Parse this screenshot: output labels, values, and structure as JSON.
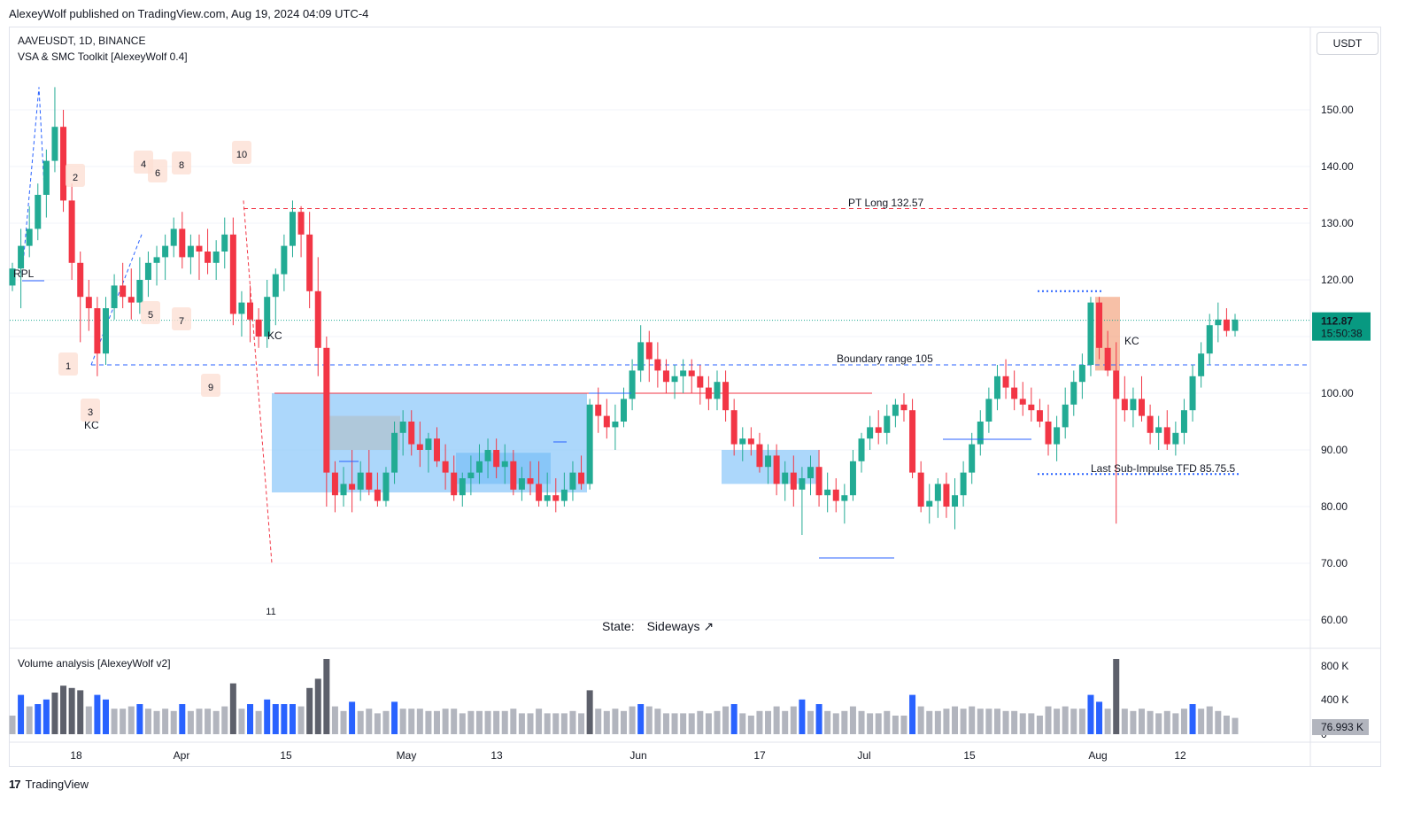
{
  "header": {
    "published": "AlexeyWolf published on TradingView.com, Aug 19, 2024 04:09 UTC-4"
  },
  "legend": {
    "symbol": "AAVEUSDT, 1D, BINANCE",
    "indicator": "VSA & SMC Toolkit [AlexeyWolf 0.4]",
    "volume_indicator": "Volume analysis [AlexeyWolf v2]"
  },
  "currency_button": "USDT",
  "state": {
    "label": "State:",
    "value": "Sideways ↗"
  },
  "footer": {
    "brand": "TradingView"
  },
  "last_price": {
    "value": "112.87",
    "countdown": "15:50:38"
  },
  "volume_readout": "76.993 K",
  "colors": {
    "up": "#22ab94",
    "down": "#f23645",
    "blue": "#2962ff",
    "zone": "#90caf9",
    "vol_gray": "#b2b5be",
    "vol_dark": "#5d606b",
    "vol_blue": "#2962ff"
  },
  "annotations": {
    "pt_long": "PT Long 132.57",
    "boundary": "Boundary range 105",
    "last_sub": "Last Sub-Impulse TFD 85.75.5",
    "kc_1": "KC",
    "kc_2": "KC",
    "kc_3": "KC",
    "rpl": "RPL",
    "counts": [
      "1",
      "2",
      "3",
      "4",
      "5",
      "6",
      "7",
      "8",
      "9",
      "10",
      "11"
    ]
  },
  "chart_data": {
    "type": "candlestick",
    "price_axis": {
      "ticks": [
        "150.00",
        "140.00",
        "130.00",
        "120.00",
        "110.00",
        "100.00",
        "90.00",
        "80.00",
        "70.00",
        "60.00"
      ],
      "range": [
        57,
        162
      ]
    },
    "volume_axis": {
      "ticks": [
        "800 K",
        "400 K",
        "0"
      ]
    },
    "time_axis": {
      "labels": [
        "18",
        "Apr",
        "15",
        "May",
        "13",
        "Jun",
        "17",
        "Jul",
        "15",
        "Aug",
        "12"
      ]
    },
    "levels": {
      "pt_long": 132.57,
      "boundary": 105,
      "last_sub": 85.75,
      "last": 112.87
    },
    "ohlc": [
      [
        119,
        123,
        118,
        122
      ],
      [
        122,
        129,
        115,
        126
      ],
      [
        126,
        133,
        124,
        129
      ],
      [
        129,
        137,
        127,
        135
      ],
      [
        135,
        143,
        131,
        141
      ],
      [
        141,
        154,
        139,
        147
      ],
      [
        147,
        150,
        132,
        134
      ],
      [
        134,
        137,
        120,
        123
      ],
      [
        123,
        125,
        109,
        117
      ],
      [
        117,
        120,
        111,
        115
      ],
      [
        115,
        117,
        103,
        107
      ],
      [
        107,
        117,
        105,
        115
      ],
      [
        115,
        121,
        113,
        119
      ],
      [
        119,
        123,
        115,
        117
      ],
      [
        117,
        122,
        113,
        116
      ],
      [
        116,
        124,
        114,
        120
      ],
      [
        120,
        125,
        117,
        123
      ],
      [
        123,
        126,
        119,
        124
      ],
      [
        124,
        128,
        120,
        126
      ],
      [
        126,
        131,
        124,
        129
      ],
      [
        129,
        132,
        122,
        124
      ],
      [
        124,
        128,
        121,
        126
      ],
      [
        126,
        128,
        120,
        125
      ],
      [
        125,
        129,
        121,
        123
      ],
      [
        123,
        127,
        120,
        125
      ],
      [
        125,
        131,
        122,
        128
      ],
      [
        128,
        131,
        112,
        114
      ],
      [
        114,
        118,
        110,
        116
      ],
      [
        116,
        119,
        109,
        113
      ],
      [
        113,
        115,
        108,
        110
      ],
      [
        110,
        120,
        108,
        117
      ],
      [
        117,
        122,
        112,
        121
      ],
      [
        121,
        128,
        118,
        126
      ],
      [
        126,
        134,
        124,
        132
      ],
      [
        132,
        133,
        124,
        128
      ],
      [
        128,
        132,
        115,
        118
      ],
      [
        118,
        124,
        103,
        108
      ],
      [
        108,
        110,
        80,
        86
      ],
      [
        86,
        88,
        79,
        82
      ],
      [
        82,
        87,
        80,
        84
      ],
      [
        84,
        90,
        79,
        83
      ],
      [
        83,
        88,
        81,
        86
      ],
      [
        86,
        90,
        82,
        83
      ],
      [
        83,
        86,
        80,
        81
      ],
      [
        81,
        87,
        80,
        86
      ],
      [
        86,
        95,
        84,
        93
      ],
      [
        93,
        97,
        89,
        95
      ],
      [
        95,
        97,
        89,
        91
      ],
      [
        91,
        95,
        87,
        90
      ],
      [
        90,
        93,
        86,
        92
      ],
      [
        92,
        94,
        87,
        88
      ],
      [
        88,
        91,
        83,
        86
      ],
      [
        86,
        89,
        81,
        82
      ],
      [
        82,
        86,
        80,
        85
      ],
      [
        85,
        89,
        82,
        86
      ],
      [
        86,
        91,
        84,
        88
      ],
      [
        88,
        92,
        85,
        90
      ],
      [
        90,
        92,
        85,
        87
      ],
      [
        87,
        91,
        84,
        88
      ],
      [
        88,
        90,
        82,
        83
      ],
      [
        83,
        87,
        81,
        85
      ],
      [
        85,
        88,
        82,
        84
      ],
      [
        84,
        88,
        80,
        81
      ],
      [
        81,
        86,
        80,
        82
      ],
      [
        82,
        85,
        79,
        81
      ],
      [
        81,
        86,
        80,
        83
      ],
      [
        83,
        88,
        81,
        86
      ],
      [
        86,
        89,
        83,
        84
      ],
      [
        84,
        99,
        83,
        98
      ],
      [
        98,
        101,
        93,
        96
      ],
      [
        96,
        99,
        92,
        94
      ],
      [
        94,
        98,
        90,
        95
      ],
      [
        95,
        101,
        94,
        99
      ],
      [
        99,
        106,
        97,
        104
      ],
      [
        104,
        112,
        102,
        109
      ],
      [
        109,
        111,
        102,
        106
      ],
      [
        106,
        109,
        101,
        104
      ],
      [
        104,
        106,
        100,
        102
      ],
      [
        102,
        105,
        99,
        103
      ],
      [
        103,
        106,
        100,
        104
      ],
      [
        104,
        106,
        100,
        103
      ],
      [
        103,
        105,
        98,
        101
      ],
      [
        101,
        103,
        97,
        99
      ],
      [
        99,
        104,
        97,
        102
      ],
      [
        102,
        104,
        95,
        97
      ],
      [
        97,
        99,
        89,
        91
      ],
      [
        91,
        94,
        88,
        92
      ],
      [
        92,
        94,
        89,
        91
      ],
      [
        91,
        93,
        86,
        87
      ],
      [
        87,
        91,
        84,
        89
      ],
      [
        89,
        91,
        82,
        84
      ],
      [
        84,
        88,
        81,
        86
      ],
      [
        86,
        89,
        80,
        83
      ],
      [
        83,
        87,
        75,
        85
      ],
      [
        85,
        89,
        82,
        87
      ],
      [
        87,
        90,
        80,
        82
      ],
      [
        82,
        86,
        79,
        83
      ],
      [
        83,
        85,
        79,
        81
      ],
      [
        81,
        84,
        77,
        82
      ],
      [
        82,
        90,
        81,
        88
      ],
      [
        88,
        93,
        86,
        92
      ],
      [
        92,
        96,
        90,
        94
      ],
      [
        94,
        97,
        91,
        93
      ],
      [
        93,
        98,
        91,
        96
      ],
      [
        96,
        99,
        94,
        98
      ],
      [
        98,
        100,
        95,
        97
      ],
      [
        97,
        99,
        85,
        86
      ],
      [
        86,
        88,
        79,
        80
      ],
      [
        80,
        84,
        77,
        81
      ],
      [
        81,
        85,
        78,
        84
      ],
      [
        84,
        86,
        78,
        80
      ],
      [
        80,
        85,
        76,
        82
      ],
      [
        82,
        88,
        80,
        86
      ],
      [
        86,
        93,
        84,
        91
      ],
      [
        91,
        97,
        89,
        95
      ],
      [
        95,
        101,
        93,
        99
      ],
      [
        99,
        105,
        97,
        103
      ],
      [
        103,
        106,
        99,
        101
      ],
      [
        101,
        104,
        97,
        99
      ],
      [
        99,
        102,
        96,
        98
      ],
      [
        98,
        101,
        95,
        97
      ],
      [
        97,
        99,
        94,
        95
      ],
      [
        95,
        98,
        89,
        91
      ],
      [
        91,
        96,
        88,
        94
      ],
      [
        94,
        101,
        92,
        98
      ],
      [
        98,
        104,
        96,
        102
      ],
      [
        102,
        107,
        99,
        105
      ],
      [
        105,
        117,
        103,
        116
      ],
      [
        116,
        117,
        106,
        108
      ],
      [
        108,
        111,
        103,
        104
      ],
      [
        104,
        109,
        77,
        99
      ],
      [
        99,
        103,
        95,
        97
      ],
      [
        97,
        101,
        94,
        99
      ],
      [
        99,
        103,
        95,
        96
      ],
      [
        96,
        98,
        91,
        93
      ],
      [
        93,
        96,
        90,
        94
      ],
      [
        94,
        97,
        90,
        91
      ],
      [
        91,
        95,
        89,
        93
      ],
      [
        93,
        99,
        91,
        97
      ],
      [
        97,
        105,
        95,
        103
      ],
      [
        103,
        109,
        101,
        107
      ],
      [
        107,
        114,
        105,
        112
      ],
      [
        112,
        116,
        109,
        113
      ],
      [
        113,
        115,
        110,
        111
      ],
      [
        111,
        114,
        110,
        113
      ]
    ]
  }
}
